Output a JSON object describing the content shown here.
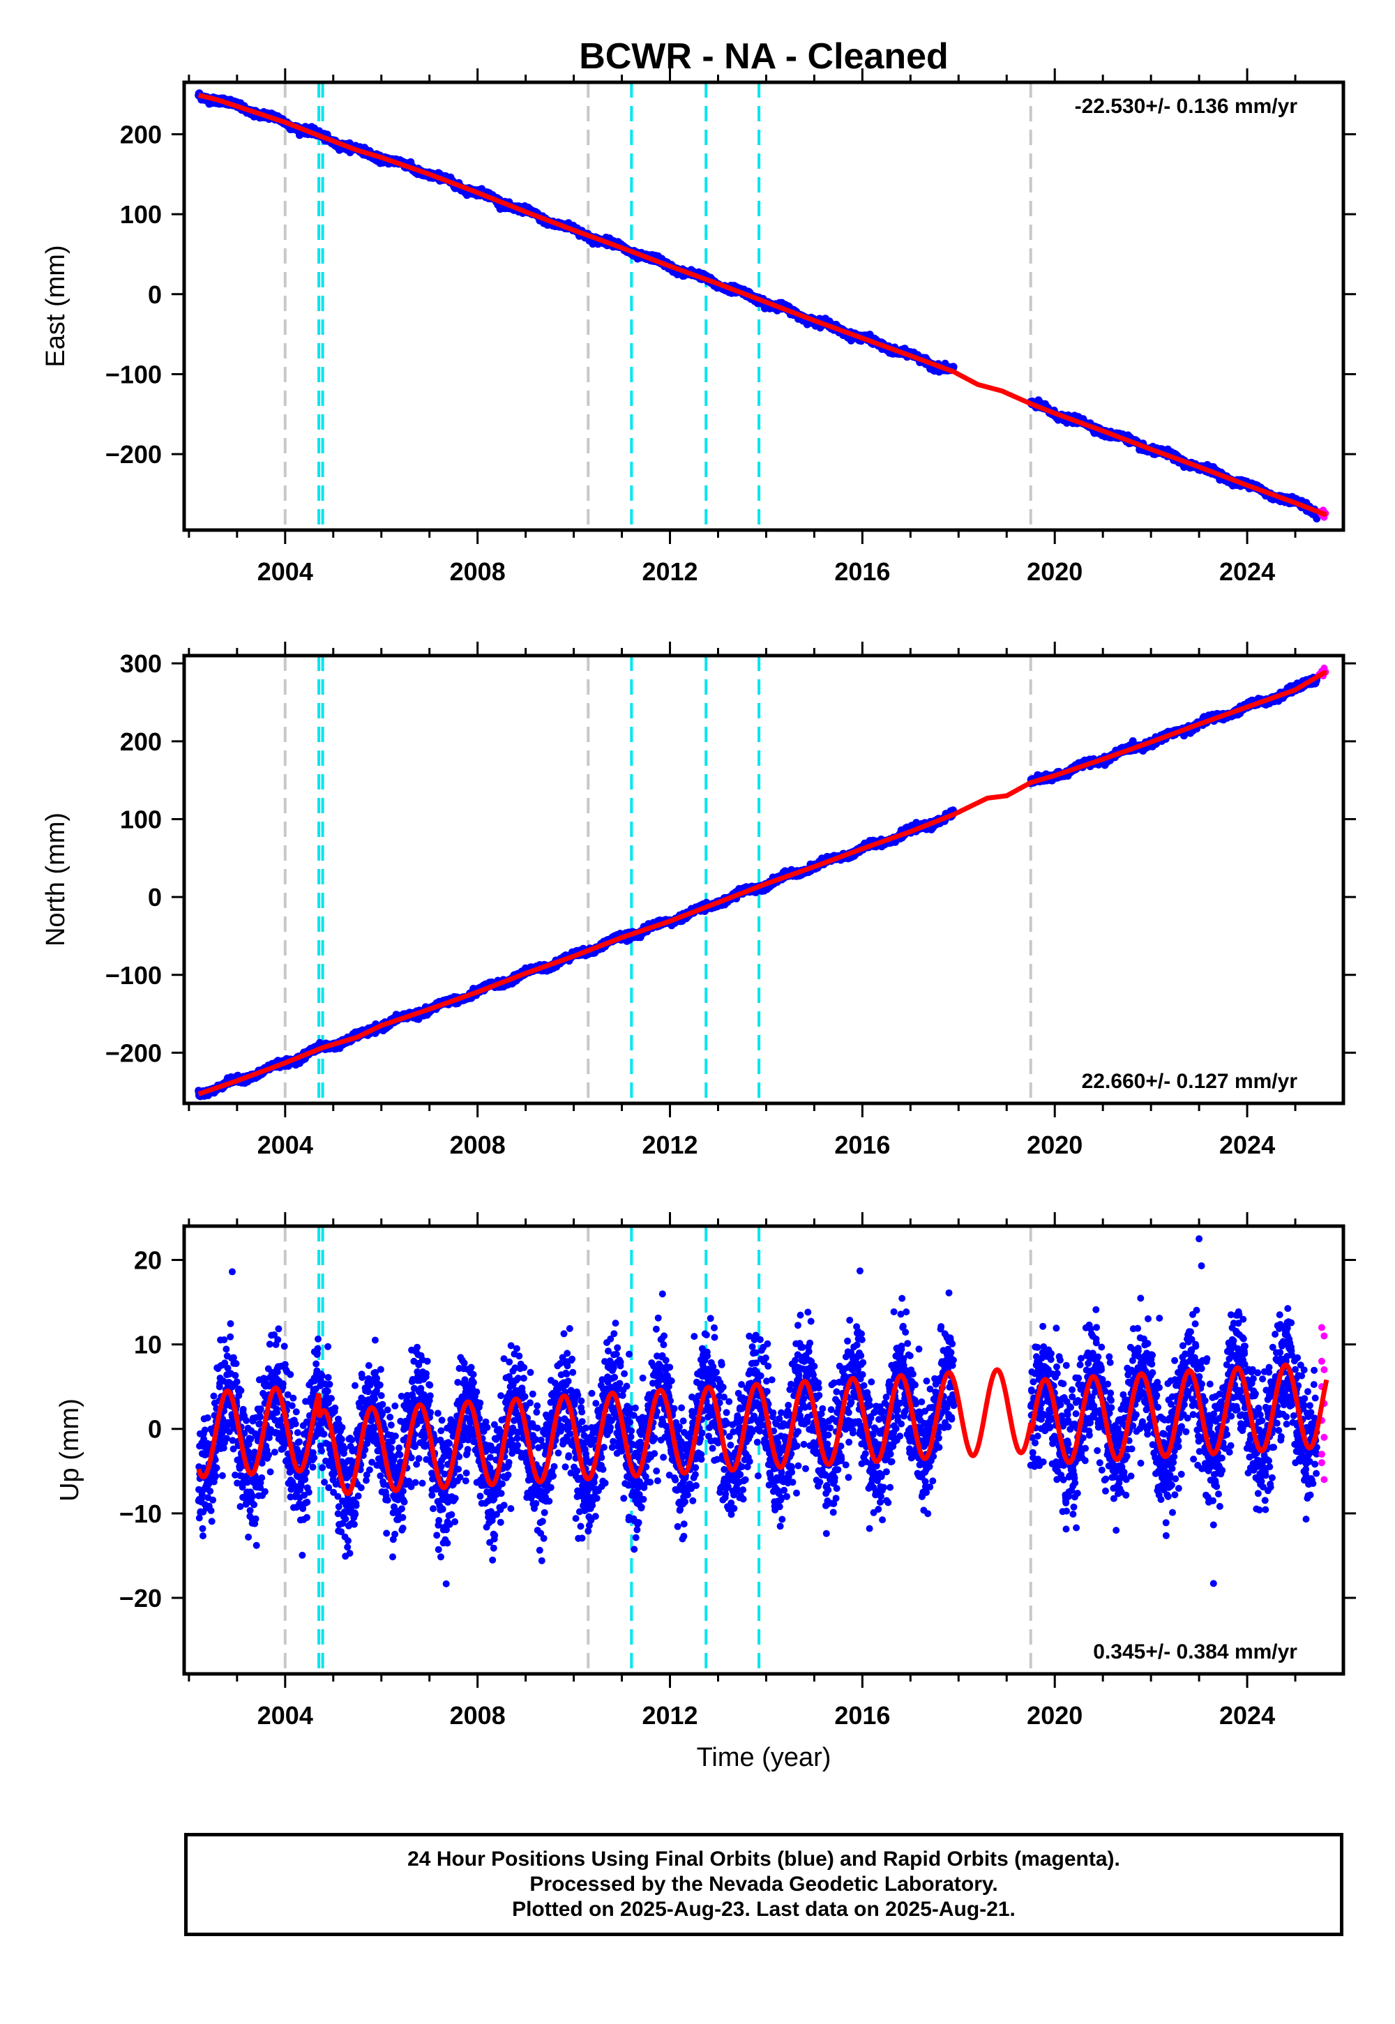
{
  "chart_data": [
    {
      "type": "scatter",
      "title": "BCWR  - NA - Cleaned",
      "ylabel": "East (mm)",
      "xlabel": "",
      "xlim": [
        2001.9,
        2026.0
      ],
      "ylim": [
        -295,
        265
      ],
      "xticks": [
        2004,
        2008,
        2012,
        2016,
        2020,
        2024
      ],
      "yticks": [
        200,
        100,
        0,
        -100,
        -200
      ],
      "ytick_labels": [
        "200",
        "100",
        "0",
        "−100",
        "−200"
      ],
      "rate_text": "-22.530+/- 0.136 mm/yr",
      "rate_position": "top-right",
      "slope": -22.53,
      "model_points": [
        [
          2002.2,
          249
        ],
        [
          2002.6,
          243
        ],
        [
          2003.2,
          231
        ],
        [
          2004.0,
          215
        ],
        [
          2004.8,
          196
        ],
        [
          2005.5,
          180
        ],
        [
          2006.0,
          171
        ],
        [
          2007.0,
          150
        ],
        [
          2008.0,
          127
        ],
        [
          2009.0,
          103
        ],
        [
          2010.0,
          80
        ],
        [
          2011.0,
          58
        ],
        [
          2012.0,
          35
        ],
        [
          2013.0,
          13
        ],
        [
          2014.0,
          -10
        ],
        [
          2015.0,
          -33
        ],
        [
          2016.0,
          -55
        ],
        [
          2017.0,
          -77
        ],
        [
          2017.9,
          -97
        ],
        [
          2018.4,
          -113
        ],
        [
          2018.9,
          -121
        ],
        [
          2019.5,
          -137
        ],
        [
          2020.0,
          -149
        ],
        [
          2021.0,
          -171
        ],
        [
          2022.0,
          -194
        ],
        [
          2023.0,
          -216
        ],
        [
          2024.0,
          -239
        ],
        [
          2025.0,
          -261
        ],
        [
          2025.6,
          -275
        ]
      ],
      "final_orbits": [
        [
          2002.2,
          2017.9
        ],
        [
          2019.5,
          2025.45
        ]
      ],
      "rapid_orbits": [
        2025.45,
        2025.65
      ],
      "rapid_points": [
        [
          2025.5,
          -272
        ],
        [
          2025.55,
          -276
        ],
        [
          2025.6,
          -279
        ],
        [
          2025.63,
          -274
        ],
        [
          2025.58,
          -270
        ]
      ],
      "gray_lines": [
        2004.0,
        2010.3,
        2019.5
      ],
      "cyan_lines": [
        2004.7,
        2004.78,
        2011.2,
        2012.75,
        2013.85
      ]
    },
    {
      "type": "scatter",
      "ylabel": "North (mm)",
      "xlabel": "",
      "xlim": [
        2001.9,
        2026.0
      ],
      "ylim": [
        -265,
        310
      ],
      "xticks": [
        2004,
        2008,
        2012,
        2016,
        2020,
        2024
      ],
      "yticks": [
        300,
        200,
        100,
        0,
        -100,
        -200
      ],
      "ytick_labels": [
        "300",
        "200",
        "100",
        "0",
        "−100",
        "−200"
      ],
      "rate_text": "22.660+/- 0.127 mm/yr",
      "rate_position": "bottom-right",
      "slope": 22.66,
      "model_points": [
        [
          2002.2,
          -253
        ],
        [
          2003.0,
          -236
        ],
        [
          2004.0,
          -213
        ],
        [
          2004.8,
          -193
        ],
        [
          2005.5,
          -180
        ],
        [
          2006.0,
          -165
        ],
        [
          2007.0,
          -144
        ],
        [
          2008.0,
          -122
        ],
        [
          2009.0,
          -98
        ],
        [
          2010.0,
          -76
        ],
        [
          2011.0,
          -52
        ],
        [
          2012.0,
          -31
        ],
        [
          2013.0,
          -7
        ],
        [
          2014.0,
          17
        ],
        [
          2015.0,
          39
        ],
        [
          2016.0,
          62
        ],
        [
          2017.0,
          84
        ],
        [
          2017.9,
          106
        ],
        [
          2018.6,
          127
        ],
        [
          2019.0,
          130
        ],
        [
          2019.5,
          147
        ],
        [
          2020.0,
          156
        ],
        [
          2021.0,
          177
        ],
        [
          2022.0,
          199
        ],
        [
          2023.0,
          222
        ],
        [
          2024.0,
          244
        ],
        [
          2025.0,
          266
        ],
        [
          2025.6,
          288
        ]
      ],
      "final_orbits": [
        [
          2002.2,
          2017.9
        ],
        [
          2019.5,
          2025.45
        ]
      ],
      "rapid_orbits": [
        2025.45,
        2025.65
      ],
      "rapid_points": [
        [
          2025.5,
          286
        ],
        [
          2025.55,
          290
        ],
        [
          2025.6,
          294
        ],
        [
          2025.63,
          289
        ],
        [
          2025.58,
          284
        ]
      ],
      "gray_lines": [
        2004.0,
        2010.3,
        2019.5
      ],
      "cyan_lines": [
        2004.7,
        2004.78,
        2011.2,
        2012.75,
        2013.85
      ]
    },
    {
      "type": "scatter",
      "ylabel": "Up (mm)",
      "xlabel": "Time (year)",
      "xlim": [
        2001.9,
        2026.0
      ],
      "ylim": [
        -29,
        24
      ],
      "xticks": [
        2004,
        2008,
        2012,
        2016,
        2020,
        2024
      ],
      "yticks": [
        20,
        10,
        0,
        -10,
        -20
      ],
      "ytick_labels": [
        "20",
        "10",
        "0",
        "−10",
        "−20"
      ],
      "rate_text": "0.345+/- 0.384 mm/yr",
      "rate_position": "bottom-right",
      "slope": 0.345,
      "seasonal_amplitude": 5.0,
      "seasonal_peak_phase": 0.8,
      "scatter_std": 3.5,
      "offset_2004_7": 3.0,
      "offset_2019_5": -1.5,
      "final_orbits": [
        [
          2002.2,
          2017.9
        ],
        [
          2019.5,
          2025.45
        ]
      ],
      "rapid_orbits": [
        2025.45,
        2025.65
      ],
      "rapid_points": [
        [
          2025.55,
          12
        ],
        [
          2025.6,
          11
        ],
        [
          2025.55,
          8
        ],
        [
          2025.6,
          7
        ],
        [
          2025.55,
          5
        ],
        [
          2025.6,
          3
        ],
        [
          2025.55,
          1
        ],
        [
          2025.6,
          -1
        ],
        [
          2025.55,
          -3
        ],
        [
          2025.6,
          -6
        ],
        [
          2025.55,
          -4
        ]
      ],
      "outliers": [
        [
          2023.0,
          22.5
        ],
        [
          2023.05,
          19.3
        ],
        [
          2023.3,
          -18.3
        ],
        [
          2015.95,
          18.7
        ],
        [
          2017.8,
          16.1
        ],
        [
          2002.9,
          18.6
        ]
      ],
      "gray_lines": [
        2004.0,
        2010.3,
        2019.5
      ],
      "cyan_lines": [
        2004.7,
        2004.78,
        2011.2,
        2012.75,
        2013.85
      ]
    }
  ],
  "caption": {
    "line1": "24 Hour Positions Using Final Orbits (blue) and Rapid Orbits (magenta).",
    "line2": "Processed by the Nevada Geodetic Laboratory.",
    "line3": "Plotted on 2025-Aug-23. Last data on 2025-Aug-21."
  },
  "colors": {
    "final": "#0000ff",
    "rapid": "#ff00ff",
    "model": "#ff0000",
    "gray_line": "#c8c8c8",
    "cyan_line": "#00e5ee"
  }
}
